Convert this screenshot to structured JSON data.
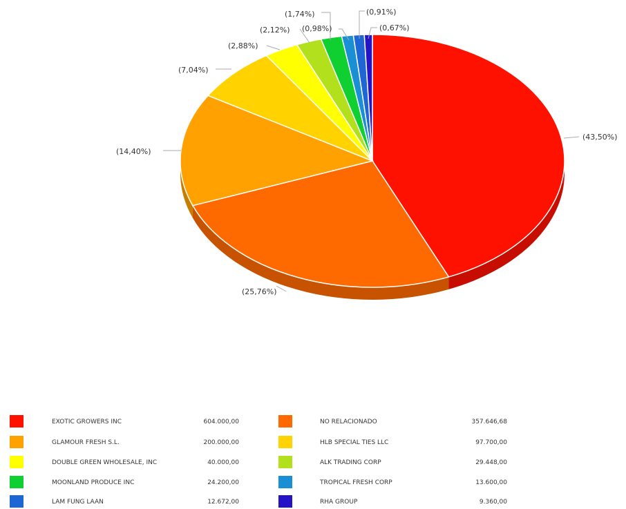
{
  "chart_data": {
    "type": "pie",
    "title": "",
    "slices": [
      {
        "name": "EXOTIC GROWERS INC",
        "value": 604000.0,
        "display": "604.000,00",
        "percent_label": "(43,50%)",
        "color": "#ff1100"
      },
      {
        "name": "NO RELACIONADO",
        "value": 357646.68,
        "display": "357.646,68",
        "percent_label": "(25,76%)",
        "color": "#ff6a00"
      },
      {
        "name": "GLAMOUR FRESH S.L.",
        "value": 200000.0,
        "display": "200.000,00",
        "percent_label": "(14,40%)",
        "color": "#ffa100"
      },
      {
        "name": "HLB SPECIAL TIES LLC",
        "value": 97700.0,
        "display": "97.700,00",
        "percent_label": "(7,04%)",
        "color": "#ffd200"
      },
      {
        "name": "DOUBLE GREEN WHOLESALE, INC",
        "value": 40000.0,
        "display": "40.000,00",
        "percent_label": "(2,88%)",
        "color": "#ffff00"
      },
      {
        "name": "ALK TRADING CORP",
        "value": 29448.0,
        "display": "29.448,00",
        "percent_label": "(2,12%)",
        "color": "#b2e01c"
      },
      {
        "name": "MOONLAND PRODUCE INC",
        "value": 24200.0,
        "display": "24.200,00",
        "percent_label": "(1,74%)",
        "color": "#10cf30"
      },
      {
        "name": "TROPICAL FRESH CORP",
        "value": 13600.0,
        "display": "13.600,00",
        "percent_label": "(0,98%)",
        "color": "#1b8fd4"
      },
      {
        "name": "LAM FUNG LAAN",
        "value": 12672.0,
        "display": "12.672,00",
        "percent_label": "(0,91%)",
        "color": "#1e66d6"
      },
      {
        "name": "RHA GROUP",
        "value": 9360.0,
        "display": "9.360,00",
        "percent_label": "(0,67%)",
        "color": "#2414c6"
      }
    ],
    "legend_position": "bottom"
  }
}
